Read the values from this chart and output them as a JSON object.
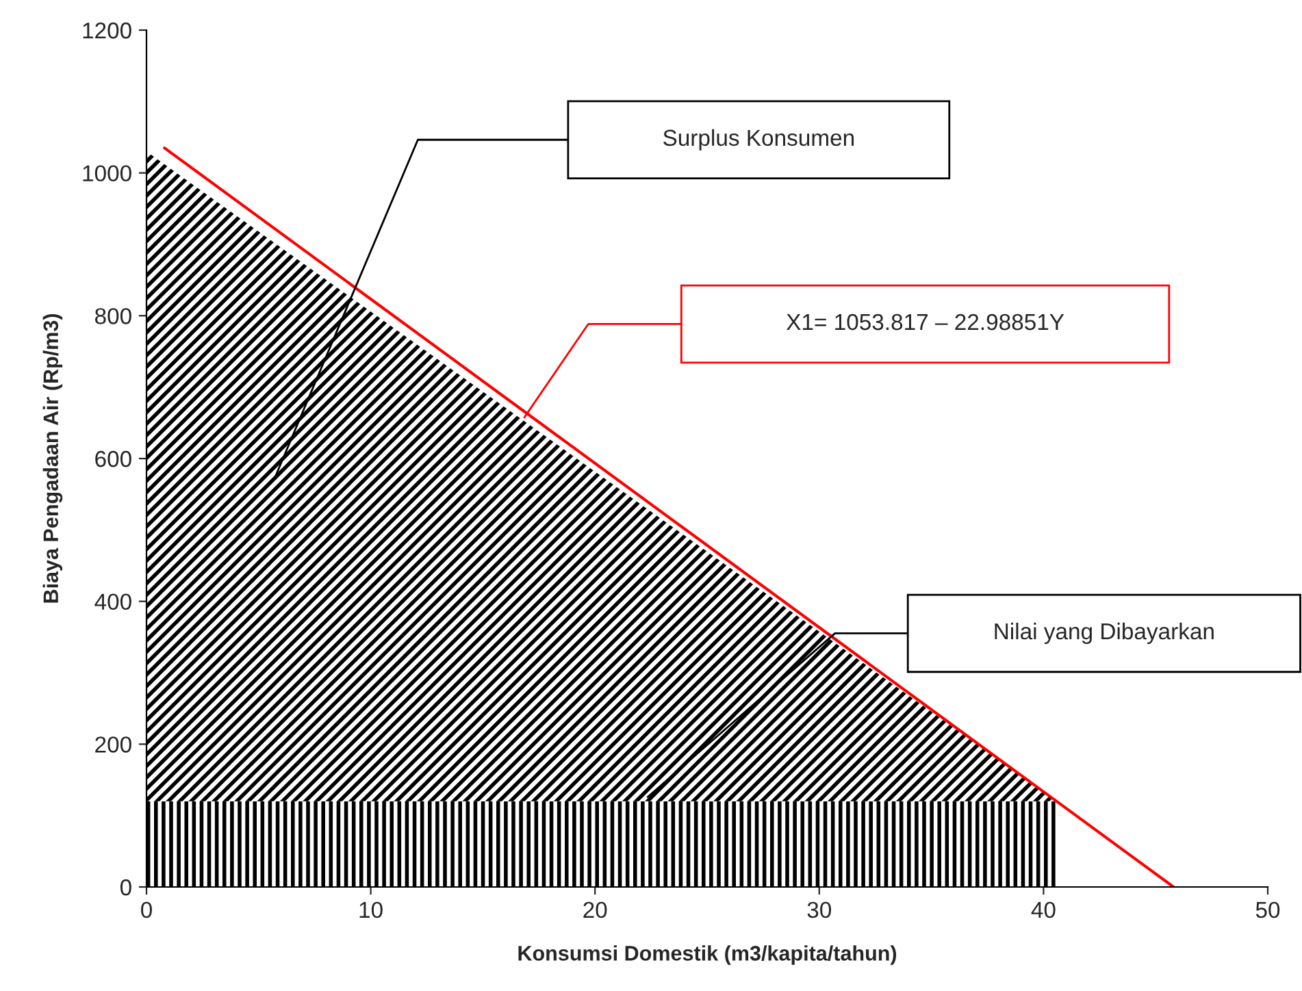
{
  "chart_data": {
    "type": "area",
    "xlabel": "Konsumsi Domestik (m3/kapita/tahun)",
    "ylabel": "Biaya Pengadaan Air (Rp/m3)",
    "stacked": true,
    "series": [
      {
        "color": "#000000",
        "x": [
          0,
          40.6
        ],
        "values": [
          120,
          120
        ]
      },
      {
        "color": "#000000",
        "x": [
          0,
          40.6
        ],
        "values": [
          910,
          0
        ]
      },
      {
        "type": "line",
        "color": "#ff0000",
        "x": [
          0.8,
          45.8
        ],
        "values": [
          1035,
          0
        ]
      }
    ],
    "annotations": [
      "Surplus Konsumen",
      "X1= 1053.817 – 22.98851Y",
      "Nilai yang Dibayarkan"
    ],
    "xlim": [
      0,
      50
    ],
    "ylim": [
      0,
      1200
    ],
    "xticks": [
      0,
      10,
      20,
      30,
      40,
      50
    ],
    "yticks": [
      0,
      200,
      400,
      600,
      800,
      1000,
      1200
    ],
    "grid": false,
    "legend": false
  }
}
